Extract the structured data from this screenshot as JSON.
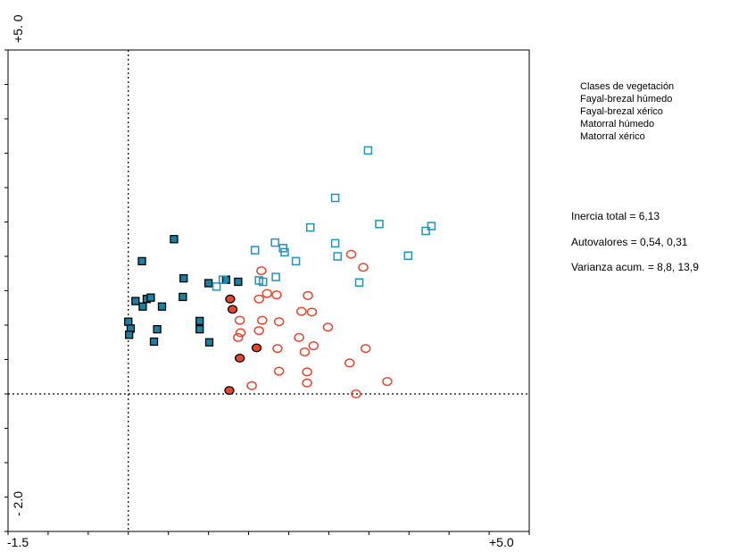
{
  "chart_data": {
    "type": "scatter",
    "xlim": [
      -1.5,
      5.0
    ],
    "ylim": [
      -2.0,
      5.0
    ],
    "tick_labels": {
      "x_min": "-1.5",
      "x_max": "+5.0",
      "y_min": "- 2.0",
      "y_max": "+5. 0"
    },
    "reference_lines": {
      "x": 0,
      "y": 0
    },
    "legend": {
      "title": "Clases de vegetación",
      "placement": "top-right"
    },
    "series": [
      {
        "name": "Fayal-brezal húmedo",
        "marker": "filled-square",
        "color": "#1b7fa0",
        "points": [
          [
            0.57,
            2.25
          ],
          [
            0.17,
            1.93
          ],
          [
            0.69,
            1.68
          ],
          [
            0.09,
            1.35
          ],
          [
            0.23,
            1.38
          ],
          [
            0.28,
            1.4
          ],
          [
            0.18,
            1.27
          ],
          [
            0.42,
            1.27
          ],
          [
            0.68,
            1.41
          ],
          [
            1.0,
            1.61
          ],
          [
            1.22,
            1.66
          ],
          [
            1.37,
            1.63
          ],
          [
            0.0,
            1.05
          ],
          [
            0.03,
            0.95
          ],
          [
            0.36,
            0.94
          ],
          [
            0.89,
            1.06
          ],
          [
            0.89,
            0.94
          ],
          [
            0.01,
            0.86
          ],
          [
            0.32,
            0.76
          ],
          [
            1.01,
            0.75
          ]
        ]
      },
      {
        "name": "Fayal-brezal xérico",
        "marker": "filled-circle",
        "color": "#e8452c",
        "points": [
          [
            1.27,
            1.38
          ],
          [
            1.3,
            1.23
          ],
          [
            1.6,
            0.67
          ],
          [
            1.39,
            0.52
          ],
          [
            1.26,
            0.05
          ]
        ]
      },
      {
        "name": "Matorral húmedo",
        "marker": "open-square",
        "color": "#1f93bf",
        "points": [
          [
            2.99,
            3.54
          ],
          [
            2.58,
            2.85
          ],
          [
            3.13,
            2.47
          ],
          [
            2.27,
            2.42
          ],
          [
            3.78,
            2.44
          ],
          [
            3.71,
            2.37
          ],
          [
            1.58,
            2.09
          ],
          [
            2.58,
            2.19
          ],
          [
            1.83,
            2.2
          ],
          [
            1.93,
            2.12
          ],
          [
            1.95,
            2.06
          ],
          [
            2.61,
            2.0
          ],
          [
            2.09,
            1.93
          ],
          [
            3.49,
            2.01
          ],
          [
            1.63,
            1.65
          ],
          [
            1.68,
            1.63
          ],
          [
            1.84,
            1.7
          ],
          [
            1.18,
            1.66
          ],
          [
            1.1,
            1.56
          ],
          [
            2.88,
            1.62
          ]
        ]
      },
      {
        "name": "Matorral xérico",
        "marker": "open-circle",
        "color": "#e8452c",
        "points": [
          [
            2.78,
            2.03
          ],
          [
            2.93,
            1.84
          ],
          [
            1.66,
            1.79
          ],
          [
            1.73,
            1.46
          ],
          [
            1.85,
            1.44
          ],
          [
            1.63,
            1.38
          ],
          [
            2.24,
            1.43
          ],
          [
            2.16,
            1.2
          ],
          [
            2.29,
            1.19
          ],
          [
            1.39,
            1.07
          ],
          [
            1.67,
            1.07
          ],
          [
            1.88,
            1.05
          ],
          [
            2.49,
            0.97
          ],
          [
            1.4,
            0.89
          ],
          [
            1.63,
            0.92
          ],
          [
            1.37,
            0.82
          ],
          [
            1.86,
            0.66
          ],
          [
            2.13,
            0.82
          ],
          [
            2.31,
            0.7
          ],
          [
            2.2,
            0.61
          ],
          [
            2.96,
            0.66
          ],
          [
            2.76,
            0.45
          ],
          [
            1.88,
            0.33
          ],
          [
            2.23,
            0.32
          ],
          [
            2.23,
            0.16
          ],
          [
            1.54,
            0.12
          ],
          [
            3.23,
            0.18
          ],
          [
            2.84,
            0.0
          ]
        ]
      }
    ]
  },
  "stats": {
    "inertia": "Inercia total = 6,13",
    "eigenvalues": "Autovalores = 0,54, 0,31",
    "variance": "Varianza acum. = 8,8, 13,9"
  }
}
